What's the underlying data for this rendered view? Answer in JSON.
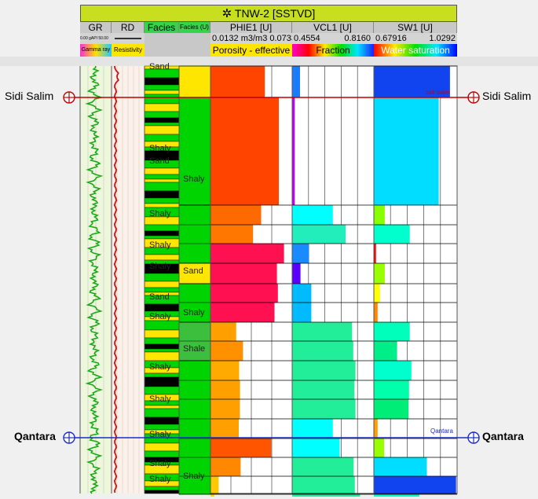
{
  "header": {
    "well_title": "TNW-2 [SSTVD]",
    "tracks": [
      {
        "name": "GR",
        "scale_text": "0.00 gAPI 50.00",
        "legend": "Gamma ray"
      },
      {
        "name": "RD",
        "scale_text": "",
        "legend": "Resistivity"
      },
      {
        "name": "Facies",
        "scale_text": "",
        "legend": ""
      },
      {
        "name": "Facies (U)",
        "scale_text": "",
        "legend": ""
      },
      {
        "name": "PHIE1 [U]",
        "scale_text": "0.0132 m3/m3 0.0733",
        "legend": "Porosity - effective"
      },
      {
        "name": "VCL1 [U]",
        "scale_min": "0.4554",
        "scale_max": "0.8160",
        "legend": "Fraction"
      },
      {
        "name": "SW1 [U]",
        "scale_min": "0.67916",
        "scale_max": "1.0292",
        "legend": "Water saturation"
      }
    ]
  },
  "markers": [
    {
      "name": "Sidi Salim",
      "inline_label": "Sidi Salim",
      "color": "#c00000"
    },
    {
      "name": "Qantara",
      "inline_label": "Qantara",
      "color": "#1a2bc9"
    }
  ],
  "facies_labels": [
    "Sand",
    "Shaly",
    "Sand",
    "Shaly",
    "Shaly",
    "Shaly",
    "Sand",
    "Shaly",
    "Shaly",
    "Shaly",
    "Shaly",
    "Shaly",
    "Shaly"
  ],
  "facies_u_labels": [
    "Shaly",
    "Sand",
    "Shaly",
    "Shale",
    "Shaly"
  ],
  "chart_data": [
    {
      "type": "bar",
      "title": "PHIE1 [U]",
      "xlabel": "Porosity - effective",
      "xlim": [
        0.0132,
        0.0733
      ],
      "values": [
        0.0532,
        0.0635,
        0.0505,
        0.0445,
        0.0673,
        0.0621,
        0.0628,
        0.0603,
        0.0321,
        0.0371,
        0.0343,
        0.0349,
        0.0348,
        0.034,
        0.0579,
        0.0354,
        0.0192,
        0.0161
      ]
    },
    {
      "type": "bar",
      "title": "VCL1 [U]",
      "xlabel": "Fraction",
      "xlim": [
        0.4554,
        0.816
      ],
      "values": [
        0.49,
        0.467,
        0.635,
        0.692,
        0.53,
        0.492,
        0.54,
        0.54,
        0.72,
        0.725,
        0.735,
        0.73,
        0.735,
        0.635,
        0.665,
        0.727,
        0.732,
        0.755
      ]
    },
    {
      "type": "bar",
      "title": "SW1 [U]",
      "xlabel": "Water saturation",
      "xlim": [
        0.67916,
        1.0292
      ],
      "values": [
        0.999,
        0.952,
        0.725,
        0.83,
        0.688,
        0.725,
        0.705,
        0.695,
        0.83,
        0.777,
        0.837,
        0.827,
        0.825,
        0.695,
        0.722,
        0.902,
        1.025,
        0.87
      ]
    }
  ]
}
